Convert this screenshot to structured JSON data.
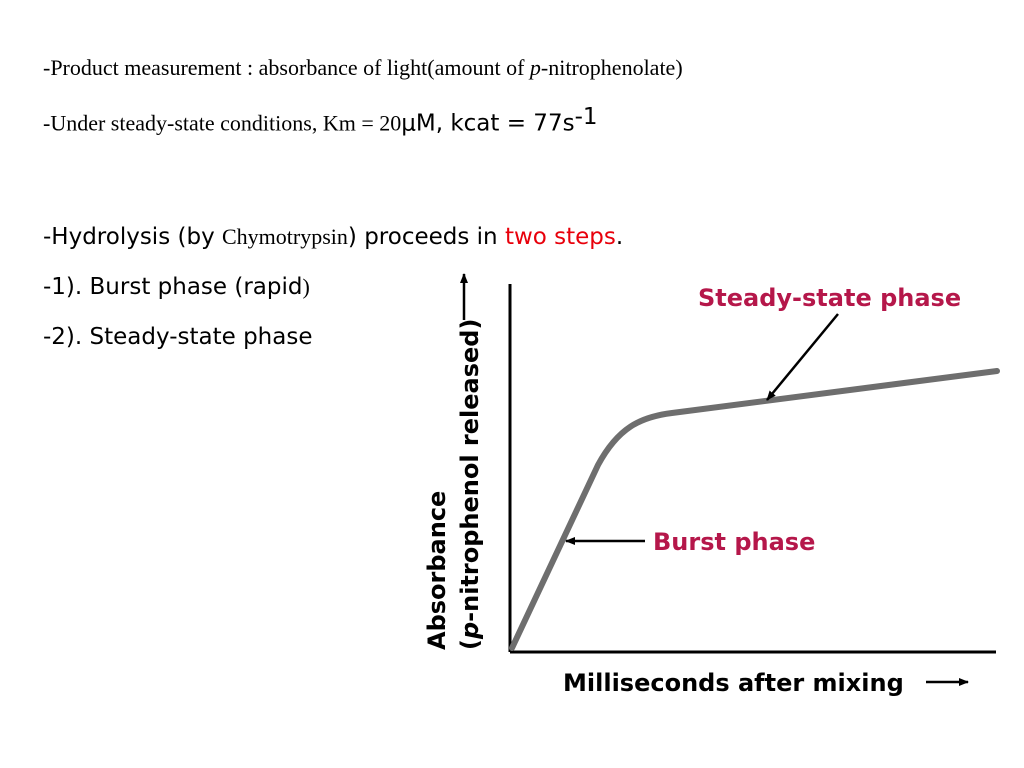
{
  "text": {
    "line1": {
      "prefix": "-Product measurement : absorbance of light(amount of ",
      "italic": "p",
      "suffix": "-nitrophenolate)"
    },
    "line2": {
      "prefix": "-Under steady-state conditions, Km = 20",
      "unit": "μM, kcat = 77s",
      "sup": "-1"
    },
    "line3": {
      "prefix": "-Hydrolysis (by ",
      "enzyme": "Chymotrypsin",
      "middle": ") proceeds in ",
      "highlight": "two steps",
      "end": "."
    },
    "line4": {
      "prefix": "-1). Burst phase (rapid",
      "end": ")"
    },
    "line5": "-2). Steady-state phase"
  },
  "colors": {
    "highlight": "#e8000b",
    "annotation": "#b5174a",
    "curve": "#6e6e6e"
  },
  "chart_data": {
    "type": "line",
    "xlabel": "Milliseconds after mixing",
    "ylabel": "Absorbance",
    "ylabel_line2_open": "(",
    "ylabel_line2_italic": "p",
    "ylabel_line2_rest": "-nitrophenol released)",
    "annotations": [
      {
        "text": "Steady-state phase",
        "points_to": "steady-state segment"
      },
      {
        "text": "Burst phase",
        "points_to": "initial rise"
      }
    ],
    "grid": false,
    "legend": "none"
  }
}
